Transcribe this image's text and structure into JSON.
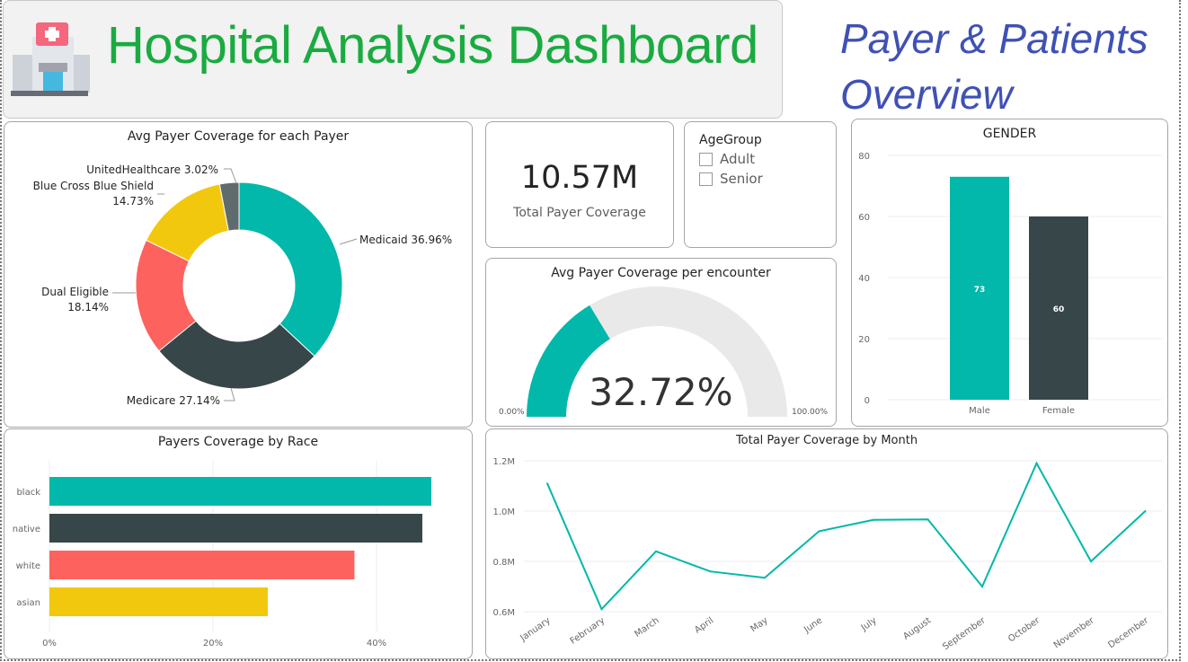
{
  "header": {
    "title": "Hospital Analysis Dashboard",
    "subtitle": "Payer & Patients Overview",
    "icon": "hospital-icon"
  },
  "colors": {
    "teal": "#01b8aa",
    "dark": "#374649",
    "red": "#fd625e",
    "yellow": "#f2c80f",
    "gray": "#5f6b6d",
    "title_green": "#1aab40",
    "subtitle_blue": "#3f51b5"
  },
  "kpi": {
    "value": "10.57M",
    "label": "Total Payer Coverage"
  },
  "age_filter": {
    "title": "AgeGroup",
    "options": [
      "Adult",
      "Senior"
    ]
  },
  "gauge": {
    "title": "Avg Payer Coverage per encounter",
    "value_label": "32.72%",
    "value": 32.72,
    "min_label": "0.00%",
    "max_label": "100.00%"
  },
  "chart_data": [
    {
      "type": "pie",
      "title": "Avg Payer Coverage for each Payer",
      "categories": [
        "Medicaid",
        "Medicare",
        "Dual Eligible",
        "Blue Cross Blue Shield",
        "UnitedHealthcare"
      ],
      "values": [
        36.96,
        27.14,
        18.14,
        14.73,
        3.02
      ],
      "labels": [
        "Medicaid 36.96%",
        "Medicare 27.14%",
        "Dual Eligible 18.14%",
        "Blue Cross Blue Shield 14.73%",
        "UnitedHealthcare 3.02%"
      ]
    },
    {
      "type": "bar",
      "title": "GENDER",
      "categories": [
        "Male",
        "Female"
      ],
      "values": [
        73,
        60
      ],
      "ylim": [
        0,
        80
      ],
      "yticks": [
        "0",
        "20",
        "40",
        "60",
        "80"
      ]
    },
    {
      "type": "bar",
      "orientation": "horizontal",
      "title": "Payers Coverage by Race",
      "categories": [
        "black",
        "native",
        "white",
        "asian"
      ],
      "values": [
        46.7,
        45.6,
        37.3,
        26.7
      ],
      "xlim": [
        0,
        50
      ],
      "xticks": [
        "0%",
        "20%",
        "40%"
      ]
    },
    {
      "type": "line",
      "title": "Total Payer Coverage by Month",
      "categories": [
        "January",
        "February",
        "March",
        "April",
        "May",
        "June",
        "July",
        "August",
        "September",
        "October",
        "November",
        "December"
      ],
      "values": [
        1.11,
        0.61,
        0.84,
        0.76,
        0.735,
        0.92,
        0.965,
        0.967,
        0.7,
        1.19,
        0.8,
        1.0
      ],
      "unit": "M",
      "ylim": [
        0.6,
        1.2
      ],
      "yticks": [
        "0.6M",
        "0.8M",
        "1.0M",
        "1.2M"
      ]
    }
  ]
}
